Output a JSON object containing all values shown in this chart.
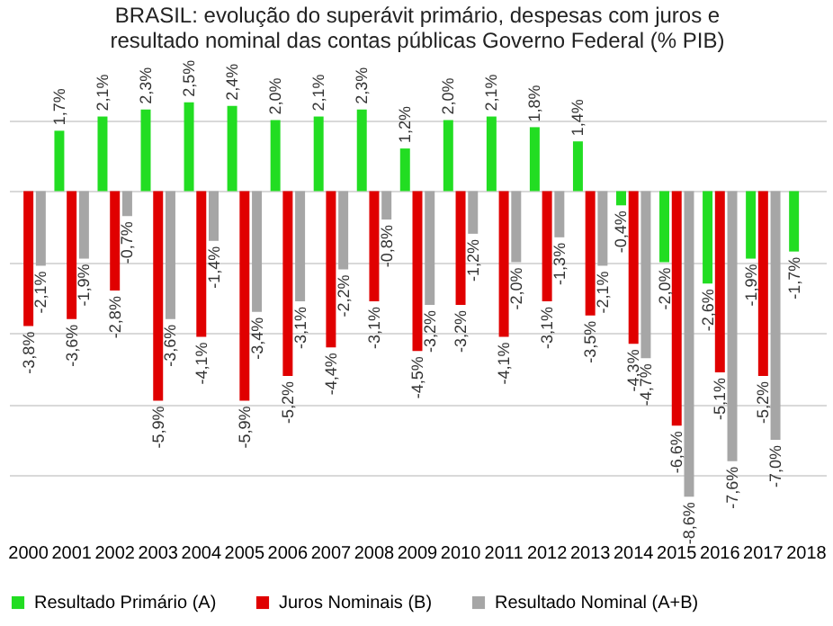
{
  "chart_data": {
    "type": "bar",
    "title": "BRASIL: evolução do superávit primário, despesas com juros e resultado nominal das contas públicas Governo Federal (% PIB)",
    "categories": [
      "2000",
      "2001",
      "2002",
      "2003",
      "2004",
      "2005",
      "2006",
      "2007",
      "2008",
      "2009",
      "2010",
      "2011",
      "2012",
      "2013",
      "2014",
      "2015",
      "2016",
      "2017",
      "2018"
    ],
    "series": [
      {
        "name": "Resultado Primário (A)",
        "color": "#22dd22",
        "values": [
          null,
          1.7,
          2.1,
          2.3,
          2.5,
          2.4,
          2.0,
          2.1,
          2.3,
          1.2,
          2.0,
          2.1,
          1.8,
          1.4,
          -0.4,
          -2.0,
          -2.6,
          -1.9,
          -1.7
        ],
        "value_labels": [
          null,
          "1,7%",
          "2,1%",
          "2,3%",
          "2,5%",
          "2,4%",
          "2,0%",
          "2,1%",
          "2,3%",
          "1,2%",
          "2,0%",
          "2,1%",
          "1,8%",
          "1,4%",
          "-0,4%",
          "-2,0%",
          "-2,6%",
          "-1,9%",
          "-1,7%"
        ]
      },
      {
        "name": "Juros Nominais (B)",
        "color": "#e00000",
        "values": [
          -3.8,
          -3.6,
          -2.8,
          -5.9,
          -4.1,
          -5.9,
          -5.2,
          -4.4,
          -3.1,
          -4.5,
          -3.2,
          -4.1,
          -3.1,
          -3.5,
          -4.3,
          -6.6,
          -5.1,
          -5.2,
          null
        ],
        "value_labels": [
          "-3,8%",
          "-3,6%",
          "-2,8%",
          "-5,9%",
          "-4,1%",
          "-5,9%",
          "-5,2%",
          "-4,4%",
          "-3,1%",
          "-4,5%",
          "-3,2%",
          "-4,1%",
          "-3,1%",
          "-3,5%",
          "-4,3%",
          "-6,6%",
          "-5,1%",
          "-5,2%",
          null
        ]
      },
      {
        "name": "Resultado Nominal (A+B)",
        "color": "#a6a6a6",
        "values": [
          -2.1,
          -1.9,
          -0.7,
          -3.6,
          -1.4,
          -3.4,
          -3.1,
          -2.2,
          -0.8,
          -3.2,
          -1.2,
          -2.0,
          -1.3,
          -2.1,
          -4.7,
          -8.6,
          -7.6,
          -7.0,
          null
        ],
        "value_labels": [
          "-2,1%",
          "-1,9%",
          "-0,7%",
          "-3,6%",
          "-1,4%",
          "-3,4%",
          "-3,1%",
          "-2,2%",
          "-0,8%",
          "-3,2%",
          "-1,2%",
          "-2,0%",
          "-1,3%",
          "-2,1%",
          "-4,7%",
          "-8,6%",
          "-7,6%",
          "-7,0%",
          null
        ]
      }
    ],
    "grid": "y",
    "tick_labels": "x",
    "legend": "bottom"
  }
}
